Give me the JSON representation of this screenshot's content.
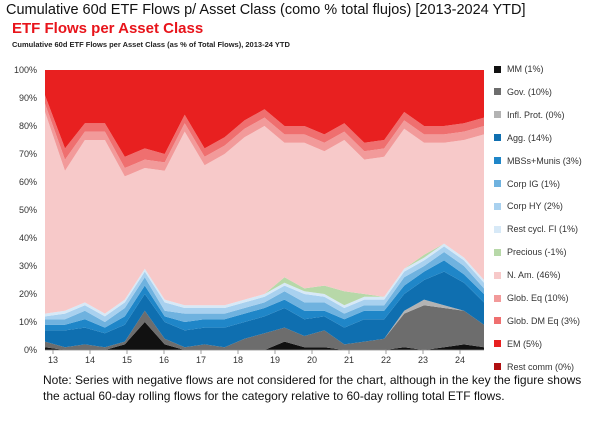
{
  "page_title": "Cumulative 60d ETF Flows p/ Asset Class (como % total flujos) [2013-2024 YTD]",
  "note": "Note: Series with negative flows are not considered for the chart, although in the key the figure shows the actual 60-day rolling flows for the category relative to 60-day rolling total ETF flows.",
  "chart_data": {
    "type": "area",
    "stacked": true,
    "normalized": true,
    "title": "ETF Flows per Asset Class",
    "subtitle": "Cumulative 60d ETF Flows per Asset Class (as % of Total Flows), 2013-24 YTD",
    "x_ticks": [
      "13",
      "14",
      "15",
      "16",
      "17",
      "18",
      "19",
      "20",
      "21",
      "22",
      "23",
      "24"
    ],
    "y_ticks": [
      "0%",
      "10%",
      "20%",
      "30%",
      "40%",
      "50%",
      "60%",
      "70%",
      "80%",
      "90%",
      "100%"
    ],
    "ylim": [
      0,
      100
    ],
    "grid": false,
    "legend_position": "right",
    "x": [
      "13",
      "13.5",
      "14",
      "14.5",
      "15",
      "15.5",
      "16",
      "16.5",
      "17",
      "17.5",
      "18",
      "18.5",
      "19",
      "19.5",
      "20",
      "20.5",
      "21",
      "21.5",
      "22",
      "22.5",
      "23",
      "23.5",
      "24"
    ],
    "series": [
      {
        "name": "MM (1%)",
        "color": "#111111",
        "values": [
          1,
          0,
          0,
          0,
          2,
          10,
          2,
          0,
          0,
          0,
          0,
          0,
          3,
          1,
          1,
          0,
          0,
          0,
          1,
          0,
          1,
          2,
          1
        ]
      },
      {
        "name": "Gov. (10%)",
        "color": "#6d6d6d",
        "values": [
          2,
          1,
          2,
          1,
          1,
          4,
          2,
          1,
          2,
          1,
          4,
          6,
          5,
          4,
          6,
          2,
          3,
          4,
          12,
          16,
          14,
          12,
          8
        ]
      },
      {
        "name": "Infl. Prot. (0%)",
        "color": "#b3b3b3",
        "values": [
          0,
          0,
          0,
          0,
          0,
          0,
          0,
          0,
          0,
          0,
          0,
          0,
          0,
          0,
          0,
          0,
          0,
          0,
          1,
          2,
          1,
          0,
          0
        ]
      },
      {
        "name": "Agg. (14%)",
        "color": "#0f6fb0",
        "values": [
          4,
          6,
          6,
          5,
          6,
          6,
          6,
          6,
          6,
          7,
          6,
          6,
          7,
          6,
          5,
          6,
          8,
          7,
          6,
          7,
          12,
          10,
          8
        ]
      },
      {
        "name": "MBSs+Munis (3%)",
        "color": "#1f86c8",
        "values": [
          2,
          2,
          3,
          2,
          3,
          3,
          2,
          3,
          3,
          3,
          3,
          3,
          3,
          3,
          2,
          3,
          3,
          3,
          3,
          3,
          4,
          3,
          3
        ]
      },
      {
        "name": "Corp IG (1%)",
        "color": "#6fb2df",
        "values": [
          2,
          2,
          3,
          2,
          3,
          3,
          2,
          3,
          2,
          2,
          2,
          2,
          3,
          3,
          3,
          2,
          2,
          2,
          3,
          2,
          3,
          3,
          2
        ]
      },
      {
        "name": "Corp HY (2%)",
        "color": "#a9d1ef",
        "values": [
          1,
          2,
          2,
          2,
          2,
          2,
          3,
          2,
          2,
          2,
          2,
          2,
          2,
          3,
          2,
          2,
          2,
          2,
          2,
          2,
          2,
          2,
          2
        ]
      },
      {
        "name": "Rest cycl. FI (1%)",
        "color": "#d7e9f7",
        "values": [
          1,
          1,
          1,
          1,
          1,
          1,
          1,
          1,
          1,
          1,
          1,
          1,
          1,
          1,
          1,
          1,
          1,
          1,
          1,
          1,
          1,
          1,
          1
        ]
      },
      {
        "name": "Precious (-1%)",
        "color": "#b7d8a8",
        "values": [
          0,
          0,
          0,
          0,
          0,
          0,
          0,
          0,
          0,
          0,
          0,
          0,
          2,
          1,
          3,
          5,
          1,
          0,
          0,
          1,
          0,
          0,
          0
        ]
      },
      {
        "name": "N. Am. (46%)",
        "color": "#f7c9c9",
        "values": [
          72,
          50,
          58,
          62,
          44,
          36,
          46,
          62,
          50,
          54,
          58,
          60,
          48,
          52,
          48,
          54,
          48,
          50,
          50,
          40,
          36,
          42,
          52
        ]
      },
      {
        "name": "Glob. Eq (10%)",
        "color": "#f29a9a",
        "values": [
          3,
          4,
          3,
          3,
          3,
          3,
          3,
          3,
          3,
          3,
          3,
          3,
          3,
          3,
          3,
          3,
          3,
          3,
          3,
          3,
          3,
          3,
          3
        ]
      },
      {
        "name": "Glob. DM Eq (3%)",
        "color": "#ef6f6f",
        "values": [
          3,
          4,
          3,
          3,
          4,
          4,
          3,
          3,
          3,
          3,
          3,
          3,
          3,
          3,
          3,
          3,
          3,
          3,
          3,
          3,
          3,
          3,
          3
        ]
      },
      {
        "name": "EM (5%)",
        "color": "#e82020",
        "values": [
          9,
          28,
          19,
          19,
          31,
          28,
          30,
          16,
          28,
          24,
          18,
          14,
          20,
          20,
          23,
          19,
          26,
          25,
          15,
          20,
          20,
          19,
          17
        ]
      },
      {
        "name": "Rest comm (0%)",
        "color": "#b00f10",
        "values": [
          0,
          0,
          0,
          0,
          0,
          0,
          0,
          0,
          0,
          0,
          0,
          0,
          0,
          0,
          0,
          0,
          0,
          0,
          0,
          0,
          0,
          0,
          0
        ]
      }
    ]
  }
}
